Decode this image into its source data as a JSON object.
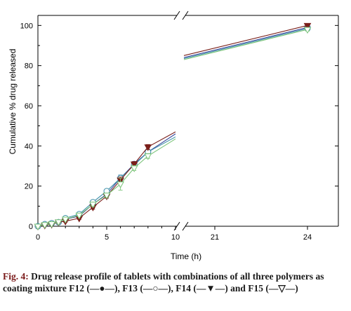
{
  "chart_data": {
    "type": "line",
    "xlabel": "Time (h)",
    "ylabel": "Cumulative % drug released",
    "ylim": [
      0,
      105
    ],
    "y_ticks": [
      0,
      20,
      40,
      60,
      80,
      100
    ],
    "x_segments": [
      {
        "range": [
          0,
          10
        ],
        "ticks": [
          0,
          5,
          10
        ]
      },
      {
        "range": [
          20,
          25
        ],
        "ticks": [
          21,
          24
        ]
      }
    ],
    "axis_break_between_segments": true,
    "grid": false,
    "legend": "none",
    "series": [
      {
        "name": "F12",
        "color": "#3b4a9e",
        "marker": "filled-circle",
        "x": [
          0,
          0.5,
          1,
          1.5,
          2,
          3,
          4,
          5,
          6,
          7,
          8,
          10,
          24
        ],
        "y": [
          0,
          1,
          1.5,
          2,
          3.5,
          5,
          11,
          16,
          24,
          31,
          37,
          46,
          99
        ],
        "segment2": {
          "x": [
            20,
            24
          ],
          "y": [
            84,
            99
          ]
        },
        "err": [
          0,
          0.3,
          0.3,
          0.4,
          0.5,
          0.6,
          1,
          1,
          1.5,
          1.2,
          1.2,
          1,
          0.8
        ]
      },
      {
        "name": "F13",
        "color": "#3d8fa8",
        "marker": "open-circle",
        "x": [
          0,
          0.5,
          1,
          1.5,
          2,
          3,
          4,
          5,
          6,
          7,
          8,
          10,
          24
        ],
        "y": [
          0,
          1,
          1.5,
          2,
          4,
          6,
          12,
          17.5,
          24,
          30.5,
          37,
          44.5,
          98.5
        ],
        "segment2": {
          "x": [
            20,
            24
          ],
          "y": [
            83.5,
            98.5
          ]
        },
        "err": [
          0,
          0.3,
          0.3,
          0.4,
          0.5,
          0.6,
          1,
          1,
          1.5,
          1.2,
          1.2,
          1,
          0.8
        ]
      },
      {
        "name": "F14",
        "color": "#7a1f1a",
        "marker": "filled-triangle-down",
        "x": [
          0,
          0.5,
          1,
          1.5,
          2,
          3,
          4,
          5,
          6,
          7,
          8,
          10,
          24
        ],
        "y": [
          0,
          0.5,
          1,
          2,
          2.5,
          4,
          9.5,
          15,
          23,
          31,
          39.5,
          47,
          100
        ],
        "segment2": {
          "x": [
            20,
            24
          ],
          "y": [
            85,
            100
          ]
        },
        "err": [
          0,
          0.3,
          0.3,
          0.4,
          0.5,
          0.6,
          1,
          1,
          1.5,
          1.2,
          1.2,
          1,
          0.8
        ]
      },
      {
        "name": "F15",
        "color": "#7cc47a",
        "marker": "open-triangle-down",
        "x": [
          0,
          0.5,
          1,
          1.5,
          2,
          3,
          4,
          5,
          6,
          7,
          8,
          10,
          24
        ],
        "y": [
          0,
          0.8,
          1.2,
          2.2,
          3.5,
          5.5,
          11,
          15.5,
          21,
          29,
          35,
          43.5,
          98
        ],
        "segment2": {
          "x": [
            20,
            24
          ],
          "y": [
            83,
            98
          ]
        },
        "err": [
          0,
          0.3,
          0.3,
          0.4,
          0.5,
          0.6,
          1,
          1,
          3,
          1.2,
          1.2,
          1,
          0.8
        ]
      }
    ]
  },
  "caption": {
    "figure_number": "Fig. 4:",
    "text": "Drug release profile of tablets with combinations of all three polymers as coating mixture F12 (—●—), F13 (—○—), F14 (—▼—) and F15 (—▽—)"
  }
}
